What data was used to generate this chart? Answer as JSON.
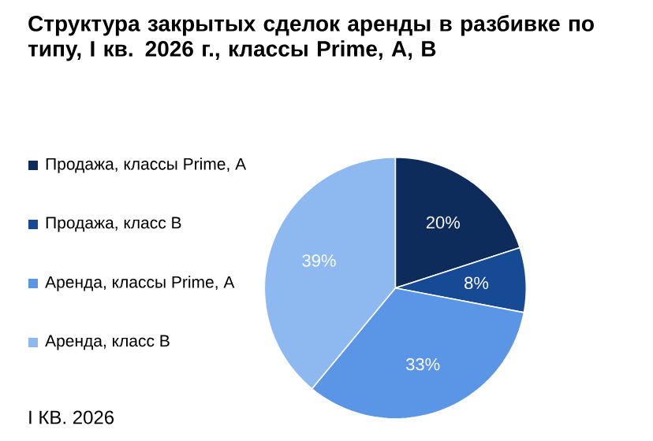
{
  "chart_data": {
    "type": "pie",
    "title": "Структура закрытых сделок аренды в разбивке по типу, I кв. 2026 г., классы Prime, A, B",
    "categories": [
      "Продажа, классы Prime, A",
      "Продажа, класс B",
      "Аренда, классы Prime, A",
      "Аренда, класс B"
    ],
    "values": [
      20,
      8,
      33,
      39
    ],
    "colors": [
      "#0d2b5b",
      "#174a94",
      "#5b95e5",
      "#8db8f0"
    ],
    "value_labels": [
      "20%",
      "8%",
      "33%",
      "39%"
    ],
    "legend": "left",
    "annotations": [
      "I КВ. 2026"
    ]
  }
}
